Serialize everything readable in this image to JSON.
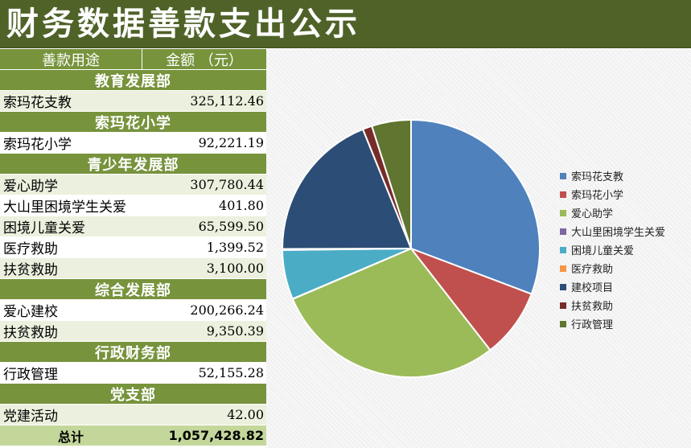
{
  "title": "财务数据善款支出公示",
  "table": {
    "header": {
      "col_purpose": "善款用途",
      "col_amount": "金额 （元）"
    },
    "groups": [
      {
        "dept": "教育发展部",
        "items": [
          {
            "name": "索玛花支教",
            "amount": "325,112.46"
          }
        ]
      },
      {
        "dept": "索玛花小学",
        "items": [
          {
            "name": "索玛花小学",
            "amount": "92,221.19"
          }
        ]
      },
      {
        "dept": "青少年发展部",
        "items": [
          {
            "name": "爱心助学",
            "amount": "307,780.44"
          },
          {
            "name": "大山里困境学生关爱",
            "amount": "401.80"
          },
          {
            "name": "困境儿童关爱",
            "amount": "65,599.50"
          },
          {
            "name": "医疗救助",
            "amount": "1,399.52"
          },
          {
            "name": "扶贫救助",
            "amount": "3,100.00"
          }
        ]
      },
      {
        "dept": "综合发展部",
        "items": [
          {
            "name": "爱心建校",
            "amount": "200,266.24"
          },
          {
            "name": "扶贫救助",
            "amount": "9,350.39"
          }
        ]
      },
      {
        "dept": "行政财务部",
        "items": [
          {
            "name": "行政管理",
            "amount": "52,155.28"
          }
        ]
      },
      {
        "dept": "党支部",
        "items": [
          {
            "name": "党建活动",
            "amount": "42.00"
          }
        ]
      }
    ],
    "total_label": "总计",
    "total_amount": "1,057,428.82"
  },
  "chart_data": {
    "type": "pie",
    "title": "",
    "legend_position": "right",
    "slices": [
      {
        "label": "索玛花支教",
        "value": 325112.46,
        "color": "#4f81bd"
      },
      {
        "label": "索玛花小学",
        "value": 92221.19,
        "color": "#c0504d"
      },
      {
        "label": "爱心助学",
        "value": 307780.44,
        "color": "#9bbb59"
      },
      {
        "label": "大山里困境学生关爱",
        "value": 401.8,
        "color": "#8064a2"
      },
      {
        "label": "困境儿童关爱",
        "value": 65599.5,
        "color": "#4bacc6"
      },
      {
        "label": "医疗救助",
        "value": 1399.52,
        "color": "#f79646"
      },
      {
        "label": "建校项目",
        "value": 200266.24,
        "color": "#2c4d75"
      },
      {
        "label": "扶贫救助",
        "value": 12450.39,
        "color": "#772c2a"
      },
      {
        "label": "行政管理",
        "value": 52155.28,
        "color": "#5f7530"
      }
    ]
  }
}
